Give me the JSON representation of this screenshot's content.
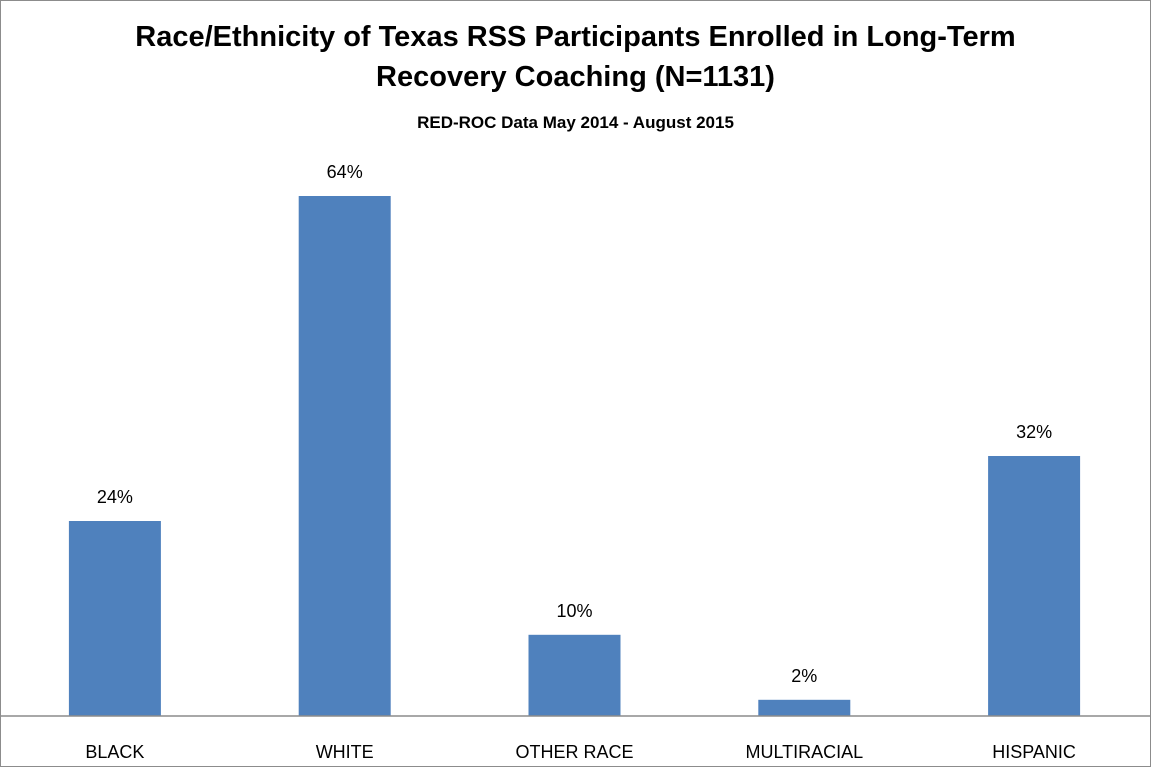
{
  "chart_data": {
    "type": "bar",
    "title_line1": "Race/Ethnicity of Texas RSS Participants Enrolled in Long-Term",
    "title_line2": "Recovery Coaching (N=1131)",
    "subtitle": "RED-ROC Data May 2014 - August 2015",
    "categories": [
      "BLACK",
      "WHITE",
      "OTHER RACE",
      "MULTIRACIAL",
      "HISPANIC"
    ],
    "values": [
      24,
      64,
      10,
      2,
      32
    ],
    "data_labels": [
      "24%",
      "64%",
      "10%",
      "2%",
      "32%"
    ],
    "value_unit": "%",
    "ylim": [
      0,
      70
    ],
    "grid": false,
    "legend": "none",
    "bar_color": "#4f81bd"
  }
}
